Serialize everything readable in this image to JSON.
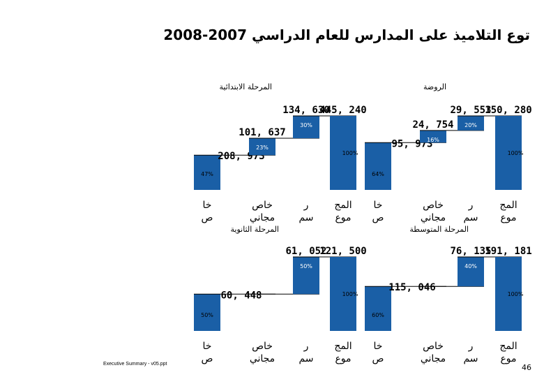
{
  "title": "توع التلاميذ على المدارس للعام الدراسي 2007-2008",
  "footer": "Executive Summary - v05.ppt",
  "page_number": "46",
  "chart_data": [
    {
      "type": "bar",
      "title": "المرحلة الابتدائية",
      "categories": [
        [
          "خا",
          "ص"
        ],
        [
          "خاص",
          "مجاني"
        ],
        [
          "ر",
          "سم"
        ],
        [
          "المج",
          "موع"
        ]
      ],
      "values": [
        208973,
        101637,
        134630,
        445240
      ],
      "value_labels": [
        "208, 973",
        "101, 637",
        "134, 630",
        "445, 240"
      ],
      "percent_labels": [
        "47%",
        "23%",
        "30%",
        "100%"
      ],
      "colors": {
        "bar": "#1a5fa6",
        "connector": "#000000"
      }
    },
    {
      "type": "bar",
      "title": "الروضة",
      "categories": [
        [
          "خا",
          "ص"
        ],
        [
          "خاص",
          "مجاني"
        ],
        [
          "ر",
          "سم"
        ],
        [
          "المج",
          "موع"
        ]
      ],
      "values": [
        95973,
        24754,
        29553,
        150280
      ],
      "value_labels": [
        "95, 973",
        "24, 754",
        "29, 553",
        "150, 280"
      ],
      "percent_labels": [
        "64%",
        "16%",
        "20%",
        "100%"
      ],
      "colors": {
        "bar": "#1a5fa6",
        "connector": "#000000"
      }
    },
    {
      "type": "bar",
      "title": "المرحلة الثانوية",
      "categories": [
        [
          "خا",
          "ص"
        ],
        [
          "خاص",
          "مجاني"
        ],
        [
          "ر",
          "سم"
        ],
        [
          "المج",
          "موع"
        ]
      ],
      "values": [
        60448,
        0,
        61052,
        121500
      ],
      "value_labels": [
        "60, 448",
        "",
        "61, 052",
        "121, 500"
      ],
      "percent_labels": [
        "50%",
        "",
        "50%",
        "100%"
      ],
      "colors": {
        "bar": "#1a5fa6",
        "connector": "#000000"
      }
    },
    {
      "type": "bar",
      "title": "المرحلة المتوسطة",
      "categories": [
        [
          "خا",
          "ص"
        ],
        [
          "خاص",
          "مجاني"
        ],
        [
          "ر",
          "سم"
        ],
        [
          "المج",
          "موع"
        ]
      ],
      "values": [
        115046,
        0,
        76135,
        191181
      ],
      "value_labels": [
        "115, 046",
        "",
        "76, 135",
        "191, 181"
      ],
      "percent_labels": [
        "60%",
        "",
        "40%",
        "100%"
      ],
      "colors": {
        "bar": "#1a5fa6",
        "connector": "#000000"
      }
    }
  ]
}
